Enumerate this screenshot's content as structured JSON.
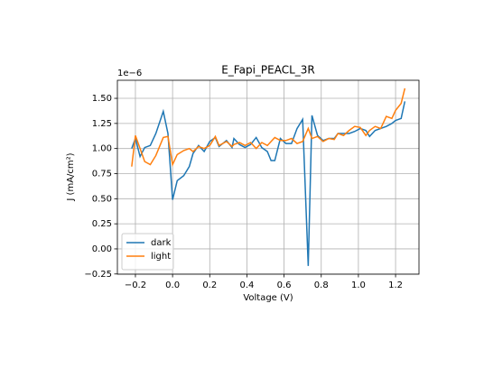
{
  "chart_data": {
    "type": "line",
    "title": "E_Fapi_PEACL_3R",
    "x_label": "Voltage (V)",
    "y_label": "J (mA/cm²)",
    "offset_text": "1e−6",
    "x": [
      -0.22,
      -0.2,
      -0.175,
      -0.15,
      -0.12,
      -0.09,
      -0.05,
      -0.025,
      0,
      0.025,
      0.06,
      0.09,
      0.11,
      0.14,
      0.17,
      0.2,
      0.23,
      0.25,
      0.29,
      0.32,
      0.33,
      0.36,
      0.39,
      0.42,
      0.45,
      0.48,
      0.51,
      0.53,
      0.55,
      0.58,
      0.61,
      0.64,
      0.67,
      0.7,
      0.73,
      0.75,
      0.78,
      0.81,
      0.84,
      0.87,
      0.89,
      0.92,
      0.95,
      0.98,
      1.01,
      1.04,
      1.06,
      1.09,
      1.12,
      1.15,
      1.18,
      1.2,
      1.23,
      1.25
    ],
    "series": [
      {
        "name": "dark",
        "color": "#1f77b4",
        "values": [
          1.0,
          1.1,
          0.92,
          1.01,
          1.03,
          1.15,
          1.37,
          1.15,
          0.49,
          0.68,
          0.73,
          0.82,
          0.95,
          1.03,
          0.97,
          1.07,
          1.11,
          1.02,
          1.08,
          1.01,
          1.1,
          1.04,
          1.01,
          1.04,
          1.11,
          1.01,
          0.97,
          0.88,
          0.88,
          1.1,
          1.05,
          1.05,
          1.2,
          1.29,
          -0.17,
          1.33,
          1.13,
          1.08,
          1.1,
          1.1,
          1.15,
          1.15,
          1.15,
          1.17,
          1.2,
          1.18,
          1.12,
          1.18,
          1.2,
          1.22,
          1.25,
          1.28,
          1.3,
          1.47
        ]
      },
      {
        "name": "light",
        "color": "#ff7f0e",
        "values": [
          0.82,
          1.13,
          1.0,
          0.87,
          0.84,
          0.93,
          1.11,
          1.12,
          0.84,
          0.94,
          0.98,
          1.0,
          0.97,
          1.02,
          1.0,
          1.03,
          1.12,
          1.03,
          1.07,
          1.02,
          1.04,
          1.06,
          1.03,
          1.06,
          1.0,
          1.06,
          1.03,
          1.07,
          1.11,
          1.08,
          1.08,
          1.1,
          1.05,
          1.07,
          1.2,
          1.1,
          1.12,
          1.07,
          1.1,
          1.09,
          1.15,
          1.13,
          1.18,
          1.22,
          1.21,
          1.13,
          1.18,
          1.22,
          1.2,
          1.32,
          1.3,
          1.38,
          1.45,
          1.6
        ]
      }
    ],
    "xlim": [
      -0.297,
      1.326
    ],
    "ylim": [
      -0.252,
      1.68
    ],
    "xticks": [
      {
        "value": -0.2,
        "label": "−0.2"
      },
      {
        "value": 0,
        "label": "0.0"
      },
      0.2,
      0.4,
      0.6,
      0.8,
      {
        "value": 1,
        "label": "1.0"
      },
      1.2
    ],
    "yticks": [
      {
        "value": -0.25,
        "label": "−0.25"
      },
      {
        "value": 0,
        "label": "0.00"
      },
      0.25,
      {
        "value": 0.5,
        "label": "0.50"
      },
      0.75,
      {
        "value": 1,
        "label": "1.00"
      },
      1.25,
      {
        "value": 1.5,
        "label": "1.50"
      }
    ],
    "grid": true,
    "legend": "lower left"
  }
}
